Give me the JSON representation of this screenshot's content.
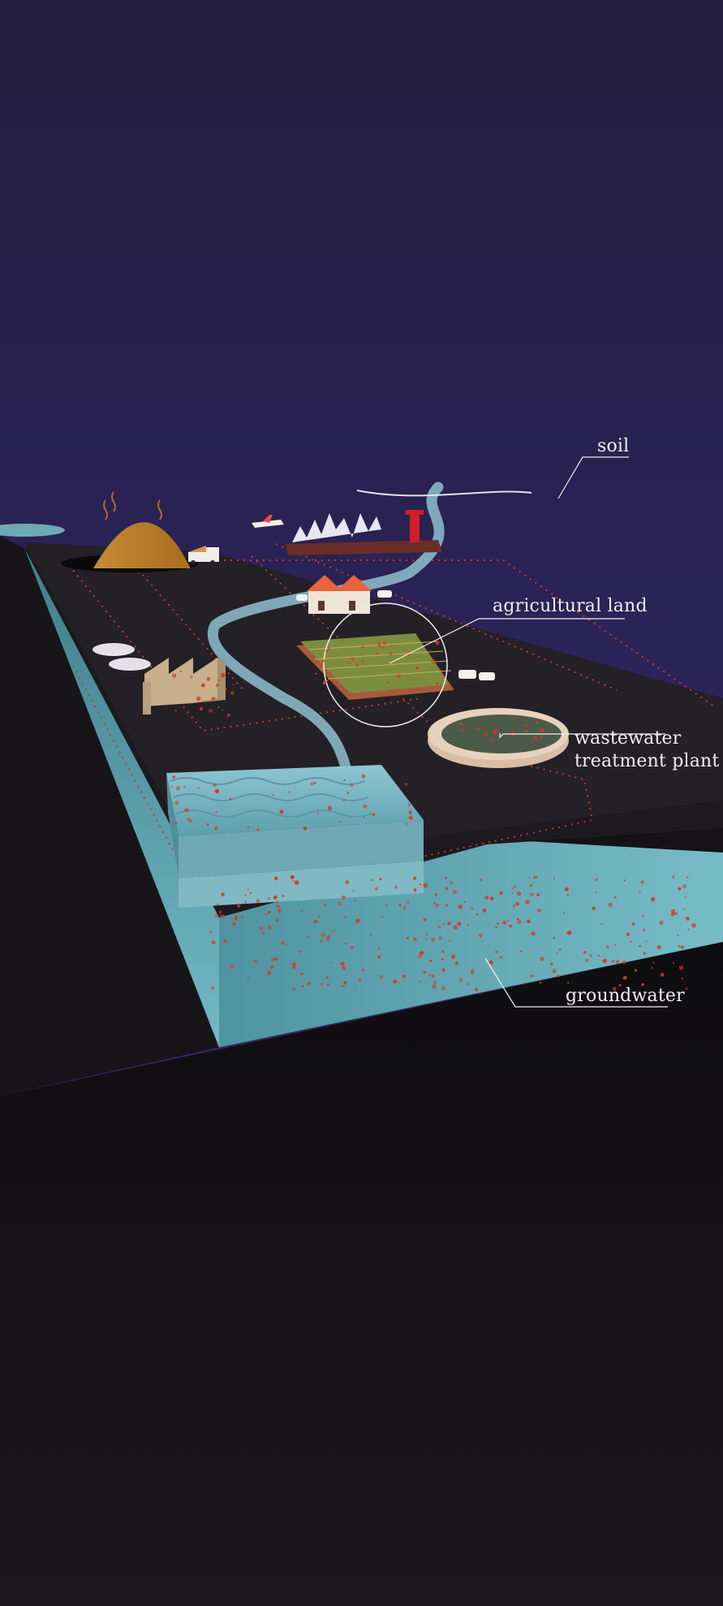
{
  "labels": {
    "soil": "soil",
    "agricultural_land": "agricultural land",
    "wastewater_line1": "wastewater",
    "wastewater_line2": "treatment plant",
    "groundwater": "groundwater"
  },
  "colors": {
    "sky_top": "#262048",
    "sky_mid": "#2c2557",
    "ground_top": "#1d1a1e",
    "water": "#6fb3c1",
    "groundwater": "#5aa0ae",
    "particle": "#d23a2a",
    "label_text": "#f2eef0"
  }
}
